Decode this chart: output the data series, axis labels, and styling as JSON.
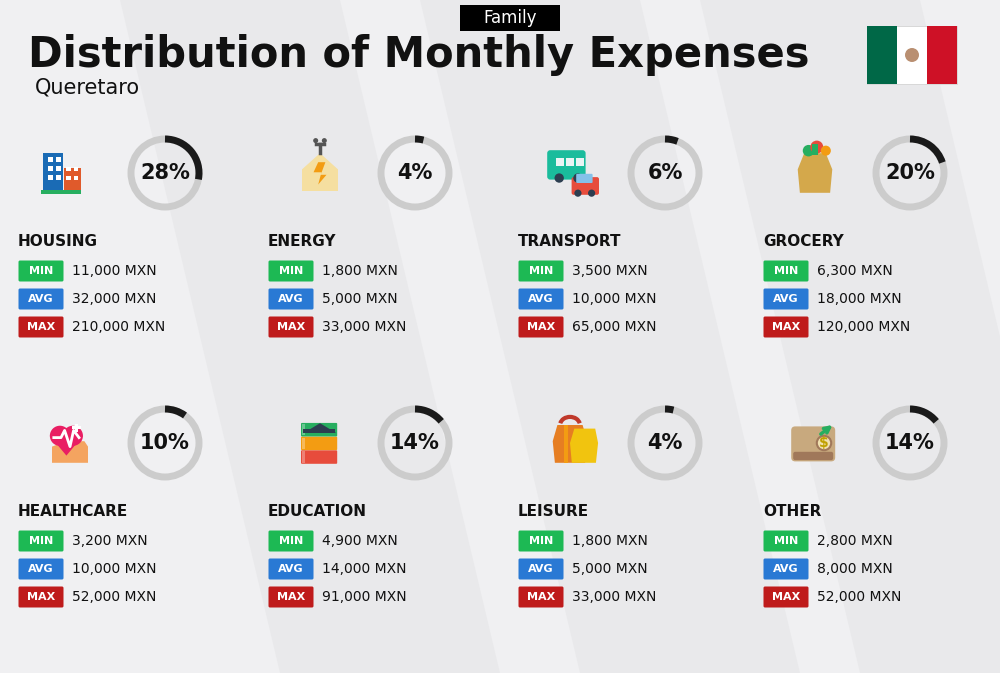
{
  "title": "Distribution of Monthly Expenses",
  "subtitle": "Queretaro",
  "family_label": "Family",
  "bg_color": "#f0f0f2",
  "categories": [
    {
      "name": "HOUSING",
      "percent": 28,
      "min_val": "11,000 MXN",
      "avg_val": "32,000 MXN",
      "max_val": "210,000 MXN",
      "row": 0,
      "col": 0
    },
    {
      "name": "ENERGY",
      "percent": 4,
      "min_val": "1,800 MXN",
      "avg_val": "5,000 MXN",
      "max_val": "33,000 MXN",
      "row": 0,
      "col": 1
    },
    {
      "name": "TRANSPORT",
      "percent": 6,
      "min_val": "3,500 MXN",
      "avg_val": "10,000 MXN",
      "max_val": "65,000 MXN",
      "row": 0,
      "col": 2
    },
    {
      "name": "GROCERY",
      "percent": 20,
      "min_val": "6,300 MXN",
      "avg_val": "18,000 MXN",
      "max_val": "120,000 MXN",
      "row": 0,
      "col": 3
    },
    {
      "name": "HEALTHCARE",
      "percent": 10,
      "min_val": "3,200 MXN",
      "avg_val": "10,000 MXN",
      "max_val": "52,000 MXN",
      "row": 1,
      "col": 0
    },
    {
      "name": "EDUCATION",
      "percent": 14,
      "min_val": "4,900 MXN",
      "avg_val": "14,000 MXN",
      "max_val": "91,000 MXN",
      "row": 1,
      "col": 1
    },
    {
      "name": "LEISURE",
      "percent": 4,
      "min_val": "1,800 MXN",
      "avg_val": "5,000 MXN",
      "max_val": "33,000 MXN",
      "row": 1,
      "col": 2
    },
    {
      "name": "OTHER",
      "percent": 14,
      "min_val": "2,800 MXN",
      "avg_val": "8,000 MXN",
      "max_val": "52,000 MXN",
      "row": 1,
      "col": 3
    }
  ],
  "min_color": "#1db954",
  "avg_color": "#2979d4",
  "max_color": "#bf1b1b",
  "text_color": "#111111",
  "donut_dark": "#1a1a1a",
  "donut_light": "#cccccc",
  "title_fontsize": 30,
  "subtitle_fontsize": 15,
  "family_fontsize": 12,
  "cat_name_fontsize": 11,
  "pct_fontsize": 15,
  "val_fontsize": 10,
  "badge_fontsize": 8
}
